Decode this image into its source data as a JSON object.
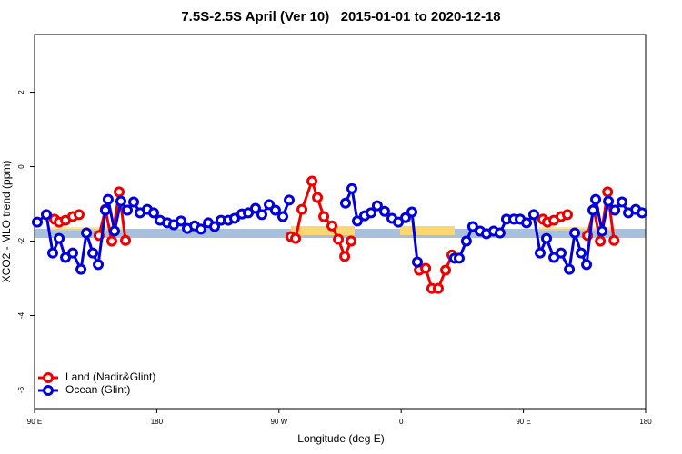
{
  "chart_data": {
    "type": "line",
    "title": "7.5S-2.5S April (Ver 10)   2015-01-01 to 2020-12-18",
    "xlabel": "Longitude (deg E)",
    "ylabel": "XCO2 - MLO trend (ppm)",
    "xlim": [
      90,
      540
    ],
    "ylim": [
      -6.5,
      3.55
    ],
    "xticks": [
      {
        "value": 90,
        "label": "90 E"
      },
      {
        "value": 180,
        "label": "180"
      },
      {
        "value": 270,
        "label": "90 W"
      },
      {
        "value": 360,
        "label": "0"
      },
      {
        "value": 450,
        "label": "90 E"
      },
      {
        "value": 540,
        "label": "180"
      }
    ],
    "yticks": [
      2,
      0,
      -2,
      -4,
      -6
    ],
    "legend": "bottom-left",
    "series": [
      {
        "name": "Land (Nadir&Glint)",
        "color": "#ee0000",
        "x": [
          104.7,
          108.1,
          112.8,
          118.1,
          122.8,
          null,
          137.5,
          142.2,
          146.9,
          152.3,
          157.0,
          null,
          278.8,
          282.2,
          286.9,
          294.3,
          298.3,
          303.0,
          309.0,
          313.7,
          318.4,
          323.1,
          null,
          373.3,
          378.0,
          382.6,
          387.3,
          392.7,
          397.4,
          null,
          464.3,
          467.7,
          472.4,
          477.7,
          482.4,
          null,
          497.2,
          501.9,
          506.6,
          512.0,
          516.7
        ],
        "values": [
          -1.41,
          -1.49,
          -1.44,
          -1.34,
          -1.29,
          null,
          -1.85,
          -1.15,
          -2.0,
          -0.68,
          -1.98,
          null,
          -1.88,
          -1.93,
          -1.15,
          -0.39,
          -0.83,
          -1.34,
          -1.59,
          -1.95,
          -2.41,
          -2.0,
          null,
          -2.78,
          -2.73,
          -3.27,
          -3.27,
          -2.78,
          -2.37,
          null,
          -1.41,
          -1.49,
          -1.44,
          -1.34,
          -1.29,
          null,
          -1.85,
          -1.15,
          -2.0,
          -0.68,
          -1.98
        ]
      },
      {
        "name": "Ocean (Glint)",
        "color": "#0000dd",
        "x": [
          92.0,
          98.7,
          103.4,
          108.1,
          112.8,
          118.1,
          124.2,
          128.2,
          132.9,
          136.9,
          142.2,
          144.2,
          148.9,
          153.6,
          158.3,
          163.0,
          167.7,
          173.0,
          177.7,
          182.4,
          187.8,
          192.5,
          197.8,
          202.5,
          207.9,
          212.5,
          217.9,
          222.6,
          227.3,
          232.6,
          237.3,
          242.7,
          247.4,
          252.7,
          257.4,
          262.8,
          267.4,
          272.8,
          277.5,
          null,
          319.0,
          323.7,
          327.7,
          333.1,
          337.8,
          342.4,
          347.8,
          353.2,
          357.9,
          363.2,
          367.9,
          371.9,
          null,
          399.3,
          402.7,
          408.0,
          412.7,
          418.1,
          422.8,
          428.1,
          432.8,
          437.5,
          442.9,
          447.6,
          452.3,
          457.6,
          462.3,
          467.0,
          472.4,
          477.7,
          483.8,
          487.8,
          492.5,
          496.5,
          501.2,
          503.2,
          507.9,
          512.6,
          517.3,
          522.6,
          527.3,
          532.7,
          537.4
        ],
        "values": [
          -1.49,
          -1.29,
          -2.32,
          -1.93,
          -2.44,
          -2.32,
          -2.76,
          -1.78,
          -2.32,
          -2.63,
          -1.17,
          -0.88,
          -1.73,
          -0.93,
          -1.17,
          -0.95,
          -1.24,
          -1.15,
          -1.24,
          -1.44,
          -1.51,
          -1.56,
          -1.46,
          -1.66,
          -1.59,
          -1.68,
          -1.51,
          -1.61,
          -1.44,
          -1.44,
          -1.39,
          -1.27,
          -1.24,
          -1.12,
          -1.29,
          -1.02,
          -1.17,
          -1.34,
          -0.9,
          null,
          -0.98,
          -0.59,
          -1.46,
          -1.32,
          -1.24,
          -1.05,
          -1.2,
          -1.39,
          -1.49,
          -1.37,
          -1.22,
          -2.56,
          null,
          -2.46,
          -2.46,
          -2.0,
          -1.61,
          -1.73,
          -1.8,
          -1.73,
          -1.78,
          -1.41,
          -1.41,
          -1.41,
          -1.51,
          -1.29,
          -2.32,
          -1.93,
          -2.44,
          -2.32,
          -2.76,
          -1.78,
          -2.32,
          -2.63,
          -1.17,
          -0.88,
          -1.73,
          -0.93,
          -1.17,
          -0.95,
          -1.24,
          -1.15,
          -1.24
        ]
      }
    ]
  }
}
